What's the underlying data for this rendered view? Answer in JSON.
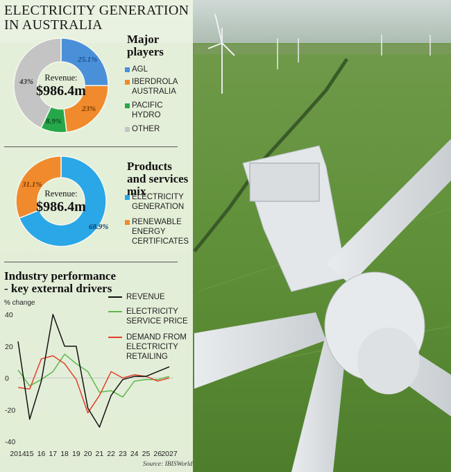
{
  "title": "ELECTRICITY GENERATION\nIN AUSTRALIA",
  "colors": {
    "agl": "#4a90d9",
    "iberdrola": "#f08a2c",
    "pacific": "#26a84a",
    "other": "#c4c4c4",
    "elec_gen": "#2aa7e6",
    "rec": "#f08a2c",
    "revenue_line": "#111111",
    "price_line": "#5cb84a",
    "demand_line": "#e0402a"
  },
  "source": "Source: IBISWorld",
  "chart_data": [
    {
      "type": "pie",
      "title": "Major players",
      "center_label": "Revenue:",
      "center_value": "$986.4m",
      "labels": [
        "AGL",
        "IBERDROLA\nAUSTRALIA",
        "PACIFIC\nHYDRO",
        "OTHER"
      ],
      "values": [
        25.1,
        23,
        8.9,
        43
      ],
      "value_labels": [
        "25.1%",
        "23%",
        "8.9%",
        "43%"
      ]
    },
    {
      "type": "pie",
      "title": "Products and\nservices mix",
      "center_label": "Revenue:",
      "center_value": "$986.4m",
      "labels": [
        "ELECTRICITY\nGENERATION",
        "RENEWABLE\nENERGY\nCERTIFICATES"
      ],
      "values": [
        68.9,
        31.1
      ],
      "value_labels": [
        "68.9%",
        "31.1%"
      ]
    },
    {
      "type": "line",
      "title": "Industry performance\n- key external drivers",
      "ylabel": "% change",
      "x": [
        2014,
        2015,
        2016,
        2017,
        2018,
        2019,
        2020,
        2021,
        2022,
        2023,
        2024,
        2025,
        2026,
        2027
      ],
      "x_tick_labels": [
        "2014",
        "15",
        "16",
        "17",
        "18",
        "19",
        "20",
        "21",
        "22",
        "23",
        "24",
        "25",
        "26",
        "2027"
      ],
      "yticks": [
        40,
        20,
        0,
        -20,
        -40
      ],
      "ylim": [
        -40,
        40
      ],
      "series": [
        {
          "name": "REVENUE",
          "values": [
            23,
            -26,
            -2,
            40,
            20,
            20,
            -19,
            -31,
            -11,
            -1,
            1,
            1,
            4,
            7
          ]
        },
        {
          "name": "ELECTRICITY\nSERVICE PRICE",
          "values": [
            5,
            -5,
            -1,
            4,
            15,
            9,
            4,
            -9,
            -8,
            -12,
            -2,
            -1,
            -1,
            1
          ]
        },
        {
          "name": "DEMAND FROM\nELECTRICITY\nRETAILING",
          "values": [
            -6,
            -7,
            12,
            14,
            9,
            -1,
            -22,
            -11,
            4,
            0,
            2,
            1,
            -2,
            0
          ]
        }
      ]
    }
  ]
}
